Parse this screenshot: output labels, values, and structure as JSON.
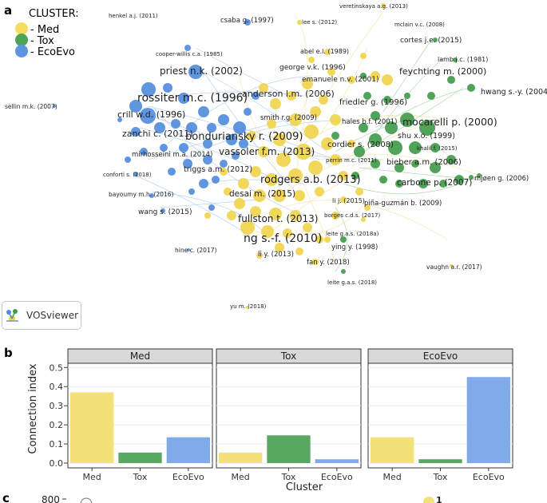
{
  "panels": {
    "a": "a",
    "b": "b",
    "c": "c"
  },
  "legend": {
    "title": "CLUSTER:",
    "items": [
      {
        "label": "- Med",
        "color": "#f3dc5e"
      },
      {
        "label": "- Tox",
        "color": "#4ea456"
      },
      {
        "label": "- EcoEvo",
        "color": "#5f95de"
      }
    ]
  },
  "network": {
    "software_badge": "VOSviewer",
    "labels": {
      "henkel": "henkel a.j. (2011)",
      "csaba": "csaba g. (1997)",
      "lee": "lee s. (2012)",
      "veretinskaya": "veretinskaya a.g. (2013)",
      "mclain": "mclain v.c. (2008)",
      "cortes": "cortes j.e. (2015)",
      "cooperwillis": "cooper-willis c.a. (1985)",
      "abel": "abel e.l. (1989)",
      "lamb": "lamb j.c. (1981)",
      "priest": "priest n.k. (2002)",
      "george": "george v.k. (1996)",
      "feychting": "feychting m. (2000)",
      "emanuele": "emanuele n.v. (2001)",
      "hwang": "hwang s.-y. (2004)",
      "anderson": "anderson l.m. (2006)",
      "rossiter": "rossiter m.c. (1996)",
      "friedler": "friedler g. (1996)",
      "sellin": "sellin m.k. (2007)",
      "crill": "crill w.d. (1996)",
      "smith": "smith r.g. (2009)",
      "hales": "hales b.f. (2001)",
      "mocarelli": "mocarelli p. (2000)",
      "zanchi": "zanchi c. (2011)",
      "bonduriansky": "bonduriansky r. (2009)",
      "shu": "shu x.o. (1999)",
      "cordier": "cordier s. (2008)",
      "khalil": "khalil f. (2015)",
      "mirhosseini": "mirhosseini m.a. (2014)",
      "vassoler": "vassoler f.m. (2013)",
      "perrin": "perrin m.c. (2011)",
      "bieber": "bieber a.m. (2006)",
      "triggs": "triggs a.m. (2012)",
      "conforti": "conforti s. (2018)",
      "mjoen": "mjøen g. (2006)",
      "rodgers": "rodgers a.b. (2013)",
      "carbone": "carbone p. (2007)",
      "desai": "desai m. (2015)",
      "bayoumy": "bayoumy m.h. (2016)",
      "lij": "li j. (2015)",
      "pinaguzman": "piña-guzmán b. (2009)",
      "wang": "wang s. (2015)",
      "borges": "borges c.d.s. (2017)",
      "fullston": "fullston t. (2013)",
      "leite2018a": "leite g.a.s. (2018a)",
      "ng": "ng s.-f. (2010)",
      "ying": "ying y. (1998)",
      "hine": "hine c. (2017)",
      "liy": "li y. (2013)",
      "fan": "fan y. (2018)",
      "vaughn": "vaughn a.r. (2017)",
      "leite2018": "leite g.a.s. (2018)",
      "yu": "yu m. (2018)"
    }
  },
  "chart_data": {
    "type": "bar",
    "facet_by": "Cluster",
    "facets": [
      "Med",
      "Tox",
      "EcoEvo"
    ],
    "categories": [
      "Med",
      "Tox",
      "EcoEvo"
    ],
    "category_colors": [
      "#f3e079",
      "#58a862",
      "#80aaea"
    ],
    "series": [
      {
        "name": "Med",
        "values": [
          0.37,
          0.055,
          0.135
        ]
      },
      {
        "name": "Tox",
        "values": [
          0.055,
          0.145,
          0.02
        ]
      },
      {
        "name": "EcoEvo",
        "values": [
          0.135,
          0.02,
          0.45
        ]
      }
    ],
    "ylabel": "Connection index",
    "xlabel": "Cluster",
    "ylim": [
      0,
      0.5
    ],
    "yticks": [
      "0.0",
      "0.1",
      "0.2",
      "0.3",
      "0.4",
      "0.5"
    ],
    "yticks_values": [
      0,
      0.1,
      0.2,
      0.3,
      0.4,
      0.5
    ],
    "grid": true
  },
  "panel_c": {
    "y_tick_top": "800",
    "legend_value": "1"
  }
}
